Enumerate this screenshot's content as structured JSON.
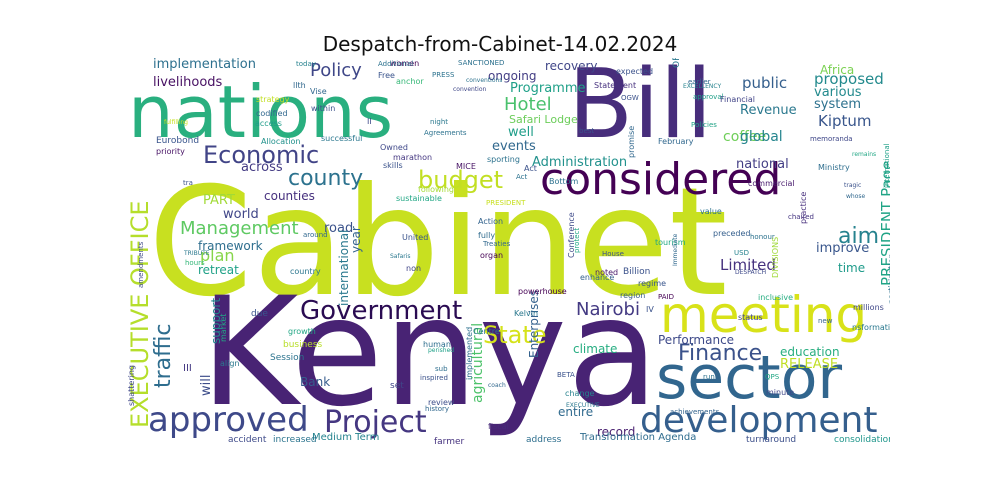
{
  "title": "Despatch-from-Cabinet-14.02.2024",
  "words": [
    {
      "text": "Cabinet",
      "color": "#c8e020"
    },
    {
      "text": "Kenya",
      "color": "#482374"
    },
    {
      "text": "Bill",
      "color": "#472d7b"
    },
    {
      "text": "nations",
      "color": "#29af7f"
    },
    {
      "text": "considered",
      "color": "#440154"
    },
    {
      "text": "sector",
      "color": "#31668e"
    },
    {
      "text": "meeting",
      "color": "#d8e219"
    },
    {
      "text": "development",
      "color": "#355f8d"
    },
    {
      "text": "approved",
      "color": "#3e4989"
    },
    {
      "text": "Project",
      "color": "#453781"
    },
    {
      "text": "Government",
      "color": "#2a0b52"
    },
    {
      "text": "Economic",
      "color": "#414487"
    },
    {
      "text": "budget",
      "color": "#c2df23"
    },
    {
      "text": "county",
      "color": "#2c728e"
    },
    {
      "text": "State",
      "color": "#d5e21a"
    },
    {
      "text": "Finance",
      "color": "#3b528b"
    },
    {
      "text": "Nairobi",
      "color": "#443a83"
    },
    {
      "text": "EXECUTIVE OFFICE",
      "color": "#b5de2b"
    },
    {
      "text": "traffic",
      "color": "#2e6d8e"
    },
    {
      "text": "aim",
      "color": "#26828e"
    },
    {
      "text": "Policy",
      "color": "#3f4788"
    },
    {
      "text": "Management",
      "color": "#5ec962"
    },
    {
      "text": "Hotel",
      "color": "#4ac16d"
    },
    {
      "text": "PRESIDENT Page",
      "color": "#20a486"
    },
    {
      "text": "Limited",
      "color": "#46327e"
    },
    {
      "text": "plan",
      "color": "#86d549"
    },
    {
      "text": "implementation",
      "color": "#2d708e"
    },
    {
      "text": "livelihoods",
      "color": "#471063"
    },
    {
      "text": "Programme",
      "color": "#1fa088"
    },
    {
      "text": "public",
      "color": "#355f8d"
    },
    {
      "text": "proposed",
      "color": "#238a8d"
    },
    {
      "text": "Revenue",
      "color": "#2a788e"
    },
    {
      "text": "Kiptum",
      "color": "#39568c"
    },
    {
      "text": "coffee",
      "color": "#6ece58"
    },
    {
      "text": "global",
      "color": "#25858e"
    },
    {
      "text": "events",
      "color": "#31688e"
    },
    {
      "text": "well",
      "color": "#1f9e89"
    },
    {
      "text": "Administration",
      "color": "#21918c"
    },
    {
      "text": "national",
      "color": "#433e85"
    },
    {
      "text": "road",
      "color": "#3b528b"
    },
    {
      "text": "world",
      "color": "#404688"
    },
    {
      "text": "counties",
      "color": "#46307e"
    },
    {
      "text": "across",
      "color": "#443b84"
    },
    {
      "text": "framework",
      "color": "#2e6e8e"
    },
    {
      "text": "retreat",
      "color": "#1fa187"
    },
    {
      "text": "PART",
      "color": "#a2da37"
    },
    {
      "text": "Performance",
      "color": "#3e4a89"
    },
    {
      "text": "education",
      "color": "#28ae80"
    },
    {
      "text": "RELEASE",
      "color": "#c0df25"
    },
    {
      "text": "time",
      "color": "#1e9b8a"
    },
    {
      "text": "improve",
      "color": "#39568c"
    },
    {
      "text": "Enterprises",
      "color": "#34618d"
    },
    {
      "text": "agricultural",
      "color": "#4ec36b"
    },
    {
      "text": "international",
      "color": "#2a788e"
    },
    {
      "text": "year",
      "color": "#33638d"
    },
    {
      "text": "Bank",
      "color": "#365c8d"
    },
    {
      "text": "support",
      "color": "#23898e"
    },
    {
      "text": "climate",
      "color": "#26ad81"
    },
    {
      "text": "will",
      "color": "#3d4d8a"
    },
    {
      "text": "record",
      "color": "#481f70"
    },
    {
      "text": "entire",
      "color": "#306a8e"
    },
    {
      "text": "system",
      "color": "#2d718e"
    },
    {
      "text": "various",
      "color": "#238a8d"
    },
    {
      "text": "Africa",
      "color": "#7ad151"
    },
    {
      "text": "ongoing",
      "color": "#433d84"
    },
    {
      "text": "recovery",
      "color": "#404688"
    },
    {
      "text": "Safari Lodge",
      "color": "#6ccd5a"
    },
    {
      "text": "Medium Term",
      "color": "#25838e"
    },
    {
      "text": "Transformation Agenda",
      "color": "#2f6c8e"
    },
    {
      "text": "accident",
      "color": "#3e4a89"
    },
    {
      "text": "increased",
      "color": "#2b748e"
    },
    {
      "text": "farmer",
      "color": "#46337f"
    },
    {
      "text": "consolidation",
      "color": "#1f968b"
    },
    {
      "text": "turnaround",
      "color": "#3c4f8a"
    },
    {
      "text": "address",
      "color": "#2e6f8e"
    },
    {
      "text": "Session",
      "color": "#2c738e"
    },
    {
      "text": "business",
      "color": "#b8de29"
    },
    {
      "text": "growth",
      "color": "#22a785"
    },
    {
      "text": "country",
      "color": "#2a768e"
    },
    {
      "text": "Eurobond",
      "color": "#39558c"
    },
    {
      "text": "priority",
      "color": "#471365"
    },
    {
      "text": "successful",
      "color": "#2a778e"
    },
    {
      "text": "Allocation",
      "color": "#21918c"
    },
    {
      "text": "strategy",
      "color": "#c2df23"
    },
    {
      "text": "codified",
      "color": "#31688e"
    },
    {
      "text": "access",
      "color": "#1e9c89"
    },
    {
      "text": "marathon",
      "color": "#453882"
    },
    {
      "text": "Owned",
      "color": "#3f4889"
    },
    {
      "text": "women",
      "color": "#440154"
    },
    {
      "text": "Free",
      "color": "#3a548c"
    },
    {
      "text": "anchor",
      "color": "#37b878"
    },
    {
      "text": "Additional",
      "color": "#2c728e"
    },
    {
      "text": "SANCTIONED",
      "color": "#2d718e"
    },
    {
      "text": "expected",
      "color": "#3b528b"
    },
    {
      "text": "Statement",
      "color": "#46307e"
    },
    {
      "text": "OFFICE",
      "color": "#2a788e"
    },
    {
      "text": "EXCELLENCY",
      "color": "#26828e"
    },
    {
      "text": "approval",
      "color": "#1f9f88"
    },
    {
      "text": "Financial",
      "color": "#414487"
    },
    {
      "text": "February",
      "color": "#31688e"
    },
    {
      "text": "memoranda",
      "color": "#3f4788"
    },
    {
      "text": "Ministry",
      "color": "#2e6e8e"
    },
    {
      "text": "commercial",
      "color": "#481b6d"
    },
    {
      "text": "value",
      "color": "#2c728e"
    },
    {
      "text": "preceded",
      "color": "#355f8d"
    },
    {
      "text": "tourism",
      "color": "#22a884"
    },
    {
      "text": "Billion",
      "color": "#3b528b"
    },
    {
      "text": "regime",
      "color": "#39568c"
    },
    {
      "text": "region",
      "color": "#365d8d"
    },
    {
      "text": "inclusive",
      "color": "#26ad81"
    },
    {
      "text": "status",
      "color": "#414487"
    },
    {
      "text": "DESPATCH",
      "color": "#3e4989"
    },
    {
      "text": "chaired",
      "color": "#453581"
    },
    {
      "text": "practice",
      "color": "#472f7d"
    },
    {
      "text": "participation",
      "color": "#2c718e"
    },
    {
      "text": "millions",
      "color": "#3f4788"
    },
    {
      "text": "United",
      "color": "#3a548c"
    },
    {
      "text": "organ",
      "color": "#440154"
    },
    {
      "text": "fully",
      "color": "#2f6b8e"
    },
    {
      "text": "Action",
      "color": "#33638d"
    },
    {
      "text": "non",
      "color": "#404588"
    },
    {
      "text": "human",
      "color": "#2e6f8e"
    },
    {
      "text": "noted",
      "color": "#481769"
    },
    {
      "text": "fiscal",
      "color": "#472c7a"
    },
    {
      "text": "review",
      "color": "#3d4e8a"
    },
    {
      "text": "change",
      "color": "#26828e"
    },
    {
      "text": "implemented",
      "color": "#2d708e"
    },
    {
      "text": "inspired",
      "color": "#3b528b"
    },
    {
      "text": "history",
      "color": "#31688e"
    },
    {
      "text": "achievements",
      "color": "#33638d"
    },
    {
      "text": "powerhouse",
      "color": "#440154"
    },
    {
      "text": "Kelvin",
      "color": "#2a788e"
    },
    {
      "text": "Conference",
      "color": "#3e4a89"
    },
    {
      "text": "enhance",
      "color": "#34618d"
    },
    {
      "text": "sporting",
      "color": "#2c728e"
    },
    {
      "text": "MICE",
      "color": "#471365"
    },
    {
      "text": "sustainable",
      "color": "#22a785"
    },
    {
      "text": "Bottom",
      "color": "#2c718e"
    },
    {
      "text": "Act",
      "color": "#3b528b"
    },
    {
      "text": "set",
      "color": "#404688"
    },
    {
      "text": "III",
      "color": "#443983"
    },
    {
      "text": "due",
      "color": "#3a548c"
    },
    {
      "text": "minute",
      "color": "#3f4788"
    },
    {
      "text": "hours",
      "color": "#35b779"
    },
    {
      "text": "TRIBUTE",
      "color": "#2a788e"
    },
    {
      "text": "around",
      "color": "#31688e"
    },
    {
      "text": "following",
      "color": "#a5db36"
    },
    {
      "text": "USD",
      "color": "#26828e"
    },
    {
      "text": "Centre",
      "color": "#2c728e"
    },
    {
      "text": "BETA",
      "color": "#3b528b"
    },
    {
      "text": "sub",
      "color": "#2e6e8e"
    },
    {
      "text": "PAID",
      "color": "#440154"
    },
    {
      "text": "QPS",
      "color": "#22a785"
    },
    {
      "text": "new",
      "color": "#33638d"
    },
    {
      "text": "run",
      "color": "#2c728e"
    },
    {
      "text": "coach",
      "color": "#31688e"
    },
    {
      "text": "perished",
      "color": "#1fa088"
    },
    {
      "text": "shattering",
      "color": "#3f4788"
    },
    {
      "text": "align",
      "color": "#2a788e"
    },
    {
      "text": "market",
      "color": "#22a785"
    },
    {
      "text": "skills",
      "color": "#3b528b"
    },
    {
      "text": "Agreements",
      "color": "#2c728e"
    },
    {
      "text": "Policies",
      "color": "#20a386"
    },
    {
      "text": "best",
      "color": "#3b528b"
    },
    {
      "text": "promise",
      "color": "#31688e"
    },
    {
      "text": "night",
      "color": "#2a788e"
    },
    {
      "text": "within",
      "color": "#3b528b"
    },
    {
      "text": "today",
      "color": "#26828e"
    },
    {
      "text": "PRESS",
      "color": "#2c728e"
    },
    {
      "text": "Vise",
      "color": "#31688e"
    },
    {
      "text": "II",
      "color": "#3e4989"
    },
    {
      "text": "IV",
      "color": "#3b528b"
    },
    {
      "text": "Safaris",
      "color": "#2a788e"
    },
    {
      "text": "convention",
      "color": "#3f4788"
    },
    {
      "text": "earlier",
      "color": "#31688e"
    },
    {
      "text": "honour",
      "color": "#2c728e"
    },
    {
      "text": "remains",
      "color": "#22a785"
    },
    {
      "text": "tragic",
      "color": "#3b528b"
    },
    {
      "text": "whose",
      "color": "#31688e"
    },
    {
      "text": "nsformation",
      "color": "#2a788e"
    },
    {
      "text": "OGW",
      "color": "#3b528b"
    },
    {
      "text": "Act",
      "color": "#2c728e"
    },
    {
      "text": "Treaties",
      "color": "#31688e"
    },
    {
      "text": "protect",
      "color": "#22a785"
    },
    {
      "text": "House",
      "color": "#3b528b"
    },
    {
      "text": "Immediate",
      "color": "#31688e"
    },
    {
      "text": "DIVISIONS",
      "color": "#a0da39"
    },
    {
      "text": "amendments",
      "color": "#3e4989"
    },
    {
      "text": "international",
      "color": "#1fa088"
    },
    {
      "text": "PRESIDENT",
      "color": "#c8e020"
    },
    {
      "text": "EXECUTIVE",
      "color": "#2a788e"
    },
    {
      "text": "tra",
      "color": "#3b528b"
    },
    {
      "text": "llth",
      "color": "#31688e"
    },
    {
      "text": "conventions",
      "color": "#2c728e"
    },
    {
      "text": "fulfilling",
      "color": "#c8e020"
    }
  ]
}
